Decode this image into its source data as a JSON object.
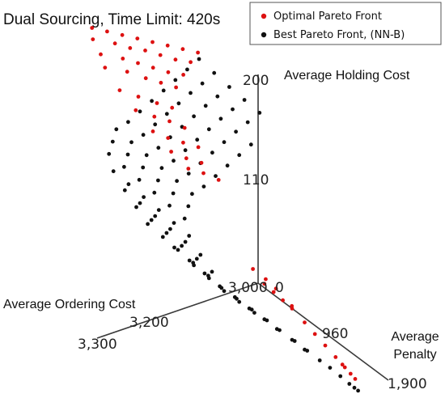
{
  "chart_data": {
    "type": "scatter",
    "projection": "3d",
    "title": "Dual Sourcing, Time Limit: 420s",
    "axes": {
      "z": {
        "label": "Average Holding Cost",
        "ticks": [
          {
            "value": 110,
            "label": "110"
          },
          {
            "value": 200,
            "label": "200"
          }
        ],
        "range": [
          0,
          200
        ]
      },
      "x": {
        "label": "Average Ordering Cost",
        "ticks": [
          {
            "value": 3300,
            "label": "3,300"
          },
          {
            "value": 3200,
            "label": "3,200"
          },
          {
            "value": 3000,
            "label": "3,000"
          }
        ],
        "range": [
          3000,
          3300
        ]
      },
      "y": {
        "label_lines": [
          "Average",
          "Penalty"
        ],
        "ticks": [
          {
            "value": 0,
            "label": "0"
          },
          {
            "value": 960,
            "label": "960"
          },
          {
            "value": 1900,
            "label": "1,900"
          }
        ],
        "range": [
          0,
          1900
        ]
      }
    },
    "legend": {
      "position": "top-right",
      "entries": [
        {
          "label": "Optimal Pareto Front",
          "color": "#dd1111"
        },
        {
          "label": "Best Pareto Front, (NN-B)",
          "color": "#111111"
        }
      ]
    },
    "series": [
      {
        "name": "Optimal Pareto Front",
        "color": "#dd1111",
        "points": [
          [
            3240,
            160,
            40
          ],
          [
            3220,
            165,
            60
          ],
          [
            3200,
            170,
            80
          ],
          [
            3180,
            175,
            100
          ],
          [
            3160,
            180,
            120
          ],
          [
            3140,
            185,
            140
          ],
          [
            3120,
            190,
            160
          ],
          [
            3100,
            195,
            180
          ],
          [
            3240,
            150,
            55
          ],
          [
            3210,
            158,
            75
          ],
          [
            3190,
            162,
            95
          ],
          [
            3170,
            168,
            115
          ],
          [
            3150,
            172,
            135
          ],
          [
            3130,
            176,
            155
          ],
          [
            3110,
            182,
            175
          ],
          [
            3230,
            140,
            70
          ],
          [
            3200,
            148,
            90
          ],
          [
            3180,
            152,
            110
          ],
          [
            3160,
            156,
            130
          ],
          [
            3140,
            160,
            150
          ],
          [
            3120,
            166,
            170
          ],
          [
            3225,
            130,
            85
          ],
          [
            3195,
            138,
            105
          ],
          [
            3170,
            142,
            125
          ],
          [
            3150,
            146,
            145
          ],
          [
            3130,
            150,
            165
          ],
          [
            3210,
            118,
            160
          ],
          [
            3185,
            122,
            180
          ],
          [
            3160,
            126,
            200
          ],
          [
            3140,
            130,
            220
          ],
          [
            3195,
            110,
            260
          ],
          [
            3170,
            114,
            280
          ],
          [
            3150,
            118,
            300
          ],
          [
            3130,
            120,
            320
          ],
          [
            3180,
            102,
            380
          ],
          [
            3160,
            104,
            400
          ],
          [
            3140,
            108,
            420
          ],
          [
            3120,
            112,
            440
          ],
          [
            3165,
            96,
            520
          ],
          [
            3145,
            98,
            540
          ],
          [
            3125,
            102,
            560
          ],
          [
            3150,
            92,
            640
          ],
          [
            3130,
            96,
            660
          ],
          [
            3110,
            98,
            680
          ],
          [
            3100,
            42,
            1380
          ],
          [
            3090,
            40,
            1420
          ],
          [
            3080,
            38,
            1460
          ],
          [
            3070,
            36,
            1500
          ],
          [
            3110,
            48,
            1300
          ],
          [
            3095,
            46,
            1340
          ],
          [
            3085,
            44,
            1400
          ],
          [
            3075,
            40,
            1560
          ],
          [
            3060,
            32,
            1600
          ],
          [
            3050,
            28,
            1660
          ],
          [
            3040,
            24,
            1720
          ],
          [
            3030,
            20,
            1780
          ],
          [
            3020,
            16,
            1820
          ],
          [
            3025,
            18,
            1840
          ],
          [
            3015,
            14,
            1860
          ],
          [
            3010,
            12,
            1880
          ]
        ]
      },
      {
        "name": "Best Pareto Front, (NN-B)",
        "color": "#111111",
        "points": [
          [
            3100,
            190,
            200
          ],
          [
            3080,
            185,
            220
          ],
          [
            3060,
            180,
            240
          ],
          [
            3040,
            176,
            260
          ],
          [
            3020,
            172,
            280
          ],
          [
            3120,
            175,
            240
          ],
          [
            3100,
            170,
            260
          ],
          [
            3080,
            166,
            280
          ],
          [
            3060,
            162,
            300
          ],
          [
            3040,
            158,
            320
          ],
          [
            3140,
            160,
            280
          ],
          [
            3120,
            156,
            300
          ],
          [
            3100,
            152,
            320
          ],
          [
            3080,
            148,
            340
          ],
          [
            3060,
            144,
            360
          ],
          [
            3040,
            140,
            380
          ],
          [
            3160,
            145,
            320
          ],
          [
            3140,
            141,
            340
          ],
          [
            3120,
            137,
            360
          ],
          [
            3100,
            133,
            380
          ],
          [
            3080,
            129,
            400
          ],
          [
            3060,
            125,
            420
          ],
          [
            3180,
            130,
            360
          ],
          [
            3160,
            126,
            380
          ],
          [
            3140,
            122,
            400
          ],
          [
            3120,
            118,
            420
          ],
          [
            3100,
            114,
            440
          ],
          [
            3080,
            110,
            460
          ],
          [
            3200,
            115,
            400
          ],
          [
            3180,
            111,
            420
          ],
          [
            3160,
            107,
            440
          ],
          [
            3140,
            103,
            460
          ],
          [
            3120,
            99,
            480
          ],
          [
            3100,
            95,
            500
          ],
          [
            3220,
            100,
            440
          ],
          [
            3200,
            96,
            460
          ],
          [
            3180,
            92,
            480
          ],
          [
            3160,
            88,
            500
          ],
          [
            3140,
            84,
            520
          ],
          [
            3120,
            80,
            540
          ],
          [
            3240,
            88,
            480
          ],
          [
            3220,
            84,
            500
          ],
          [
            3200,
            80,
            520
          ],
          [
            3180,
            76,
            540
          ],
          [
            3160,
            72,
            560
          ],
          [
            3140,
            68,
            580
          ],
          [
            3250,
            76,
            540
          ],
          [
            3230,
            72,
            560
          ],
          [
            3210,
            68,
            580
          ],
          [
            3190,
            64,
            600
          ],
          [
            3170,
            60,
            620
          ],
          [
            3150,
            56,
            640
          ],
          [
            3260,
            64,
            600
          ],
          [
            3240,
            60,
            620
          ],
          [
            3220,
            56,
            640
          ],
          [
            3200,
            52,
            660
          ],
          [
            3180,
            48,
            680
          ],
          [
            3160,
            44,
            700
          ],
          [
            3260,
            52,
            680
          ],
          [
            3240,
            48,
            700
          ],
          [
            3220,
            44,
            720
          ],
          [
            3200,
            40,
            740
          ],
          [
            3180,
            36,
            760
          ],
          [
            3160,
            32,
            780
          ],
          [
            3250,
            42,
            760
          ],
          [
            3230,
            38,
            780
          ],
          [
            3210,
            34,
            800
          ],
          [
            3190,
            30,
            820
          ],
          [
            3170,
            26,
            840
          ],
          [
            3150,
            22,
            860
          ],
          [
            3240,
            34,
            840
          ],
          [
            3220,
            30,
            860
          ],
          [
            3200,
            26,
            880
          ],
          [
            3180,
            22,
            900
          ],
          [
            3160,
            18,
            920
          ],
          [
            3140,
            14,
            940
          ],
          [
            3230,
            26,
            920
          ],
          [
            3210,
            22,
            940
          ],
          [
            3190,
            18,
            960
          ],
          [
            3170,
            14,
            980
          ],
          [
            3150,
            10,
            1000
          ],
          [
            3200,
            20,
            1020
          ],
          [
            3180,
            16,
            1040
          ],
          [
            3160,
            12,
            1060
          ],
          [
            3140,
            8,
            1080
          ],
          [
            3120,
            6,
            1100
          ],
          [
            3180,
            16,
            1120
          ],
          [
            3160,
            12,
            1140
          ],
          [
            3140,
            8,
            1160
          ],
          [
            3120,
            6,
            1180
          ],
          [
            3100,
            4,
            1200
          ],
          [
            3150,
            12,
            1240
          ],
          [
            3130,
            10,
            1260
          ],
          [
            3110,
            8,
            1280
          ],
          [
            3090,
            6,
            1300
          ],
          [
            3120,
            10,
            1360
          ],
          [
            3100,
            8,
            1380
          ],
          [
            3080,
            6,
            1400
          ],
          [
            3060,
            4,
            1420
          ],
          [
            3090,
            8,
            1480
          ],
          [
            3070,
            6,
            1500
          ],
          [
            3050,
            4,
            1520
          ],
          [
            3060,
            6,
            1600
          ],
          [
            3040,
            4,
            1620
          ],
          [
            3030,
            4,
            1680
          ],
          [
            3020,
            3,
            1740
          ],
          [
            3012,
            2,
            1800
          ],
          [
            3008,
            2,
            1840
          ],
          [
            3005,
            2,
            1870
          ]
        ]
      }
    ]
  }
}
